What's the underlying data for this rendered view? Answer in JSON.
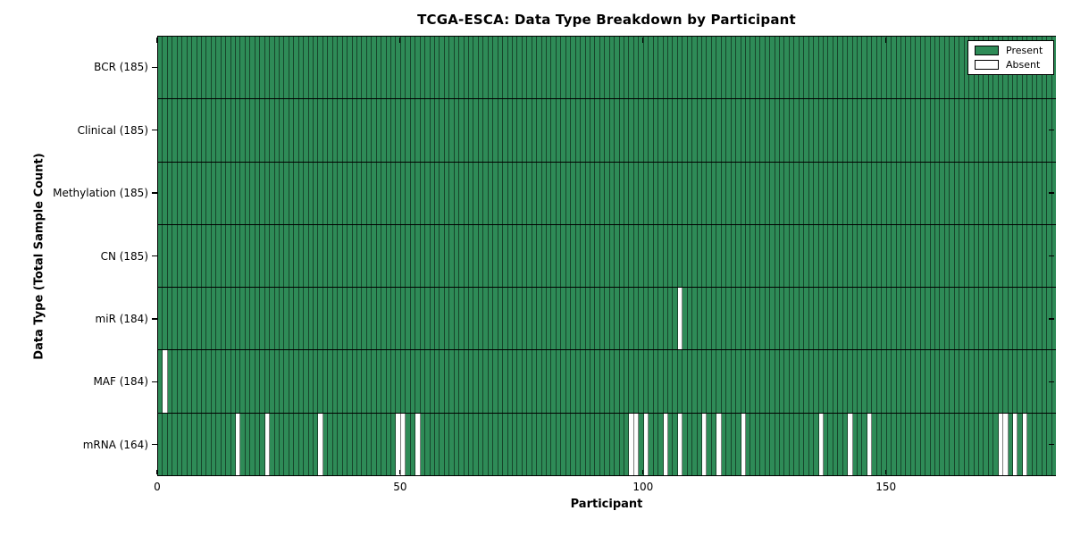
{
  "chart_data": {
    "type": "heatmap",
    "title": "TCGA-ESCA: Data Type Breakdown by Participant",
    "xlabel": "Participant",
    "ylabel": "Data Type (Total Sample Count)",
    "x_ticks": [
      0,
      50,
      100,
      150
    ],
    "xlim": [
      0,
      185
    ],
    "n_participants": 185,
    "grid": "off",
    "legend": {
      "position": "upper right",
      "entries": [
        {
          "label": "Present",
          "color": "#2e8b57"
        },
        {
          "label": "Absent",
          "color": "#ffffff"
        }
      ]
    },
    "colors": {
      "present": "#2e8b57",
      "absent": "#ffffff",
      "cell_border": "rgba(0,0,0,0.5)",
      "axis": "#000000"
    },
    "rows": [
      {
        "name": "BCR",
        "label": "BCR (185)",
        "total": 185,
        "absent_participants": []
      },
      {
        "name": "Clinical",
        "label": "Clinical (185)",
        "total": 185,
        "absent_participants": []
      },
      {
        "name": "Methylation",
        "label": "Methylation (185)",
        "total": 185,
        "absent_participants": []
      },
      {
        "name": "CN",
        "label": "CN (185)",
        "total": 185,
        "absent_participants": []
      },
      {
        "name": "miR",
        "label": "miR (184)",
        "total": 184,
        "absent_participants": [
          107
        ]
      },
      {
        "name": "MAF",
        "label": "MAF (184)",
        "total": 184,
        "absent_participants": [
          1
        ]
      },
      {
        "name": "mRNA",
        "label": "mRNA (164)",
        "total": 164,
        "absent_participants": [
          16,
          22,
          33,
          49,
          50,
          53,
          97,
          98,
          100,
          104,
          107,
          112,
          115,
          120,
          136,
          142,
          146,
          173,
          174,
          176,
          178
        ]
      }
    ]
  }
}
